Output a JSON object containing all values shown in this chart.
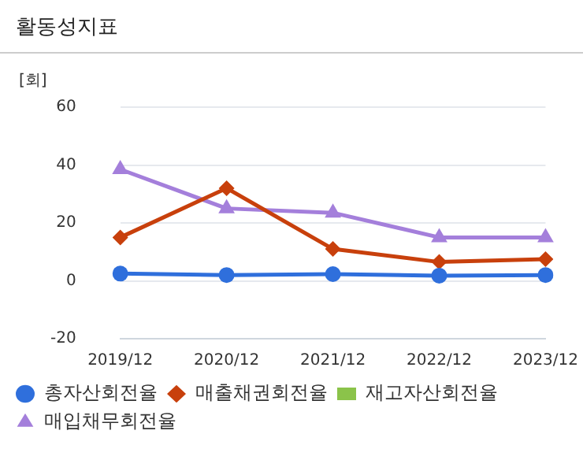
{
  "chart_data": {
    "type": "line",
    "title": "활동성지표",
    "ylabel": "[회]",
    "categories": [
      "2019/12",
      "2020/12",
      "2021/12",
      "2022/12",
      "2023/12"
    ],
    "ylim": [
      -20,
      60
    ],
    "yticks": [
      -20,
      0,
      20,
      40,
      60
    ],
    "grid": "y",
    "legend": "bottom",
    "series": [
      {
        "name": "총자산회전율",
        "color": "#2f6fdc",
        "marker": "circle",
        "values": [
          2.5,
          2,
          2.3,
          1.8,
          2
        ]
      },
      {
        "name": "매출채권회전율",
        "color": "#c8400c",
        "marker": "diamond",
        "values": [
          15,
          32,
          11,
          6.5,
          7.5
        ]
      },
      {
        "name": "재고자산회전율",
        "color": "#8bc34a",
        "marker": "square",
        "values": [
          null,
          null,
          null,
          null,
          null
        ]
      },
      {
        "name": "매입채무회전율",
        "color": "#a47fdb",
        "marker": "triangle",
        "values": [
          38.5,
          25,
          23.5,
          15,
          15
        ]
      }
    ]
  }
}
